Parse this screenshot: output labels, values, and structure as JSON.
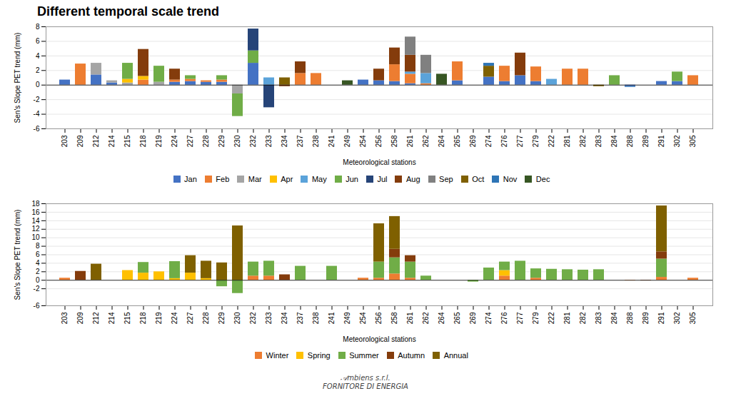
{
  "chart_data": [
    {
      "type": "bar",
      "stacked": true,
      "grid": true,
      "legend": "bottom",
      "title": "Different temporal scale trend",
      "xlabel": "Meteorological stations",
      "ylabel": "Sen's Slope PET trend (mm)",
      "categories": [
        "203",
        "209",
        "212",
        "214",
        "215",
        "218",
        "219",
        "224",
        "227",
        "228",
        "229",
        "230",
        "232",
        "233",
        "234",
        "237",
        "238",
        "241",
        "249",
        "254",
        "256",
        "258",
        "261",
        "262",
        "264",
        "265",
        "269",
        "274",
        "276",
        "277",
        "279",
        "222",
        "281",
        "282",
        "283",
        "284",
        "288",
        "289",
        "291",
        "302",
        "305"
      ],
      "ylim": [
        -6,
        8
      ],
      "yticks": [
        -6,
        -4,
        -2,
        0,
        2,
        4,
        6,
        8
      ],
      "series": [
        {
          "name": "Jan",
          "color": "#4472C4",
          "values": [
            0.7,
            0.0,
            1.4,
            0.3,
            0.0,
            0.0,
            0.0,
            0.4,
            0.5,
            0.4,
            0.4,
            0.0,
            3.0,
            0.0,
            0.0,
            0.0,
            0.0,
            0.0,
            0.0,
            0.7,
            0.6,
            0.5,
            0.2,
            0.0,
            0.0,
            0.6,
            0.0,
            1.1,
            0.5,
            1.3,
            0.5,
            0.0,
            0.0,
            0.0,
            0.0,
            0.0,
            -0.2,
            0.0,
            0.5,
            0.5,
            0.0
          ]
        },
        {
          "name": "Feb",
          "color": "#ED7D31",
          "values": [
            0.0,
            2.9,
            0.0,
            0.0,
            0.0,
            0.7,
            0.0,
            0.3,
            0.3,
            0.2,
            0.3,
            0.0,
            0.0,
            0.0,
            0.0,
            1.6,
            1.6,
            0.0,
            0.0,
            0.0,
            0.0,
            2.3,
            1.3,
            0.2,
            0.0,
            2.6,
            0.0,
            0.0,
            2.1,
            0.0,
            2.0,
            0.0,
            2.2,
            2.2,
            0.0,
            0.0,
            0.0,
            0.0,
            0.0,
            0.0,
            1.3
          ]
        },
        {
          "name": "Mar",
          "color": "#A5A5A5",
          "values": [
            0.0,
            0.0,
            1.6,
            0.3,
            0.3,
            0.0,
            0.4,
            0.0,
            0.0,
            0.0,
            0.0,
            -1.2,
            0.0,
            0.0,
            0.0,
            0.0,
            0.0,
            0.0,
            0.0,
            0.0,
            0.0,
            0.0,
            0.0,
            0.0,
            0.0,
            0.0,
            0.0,
            0.0,
            0.0,
            0.0,
            0.0,
            0.0,
            0.0,
            0.0,
            0.0,
            0.0,
            0.0,
            0.0,
            0.0,
            0.0,
            0.0
          ]
        },
        {
          "name": "Apr",
          "color": "#FFC000",
          "values": [
            0.0,
            0.0,
            0.0,
            0.0,
            0.5,
            0.5,
            0.0,
            0.0,
            0.0,
            0.0,
            0.0,
            0.0,
            0.0,
            0.0,
            0.0,
            0.0,
            0.0,
            0.0,
            0.0,
            0.0,
            0.0,
            0.0,
            0.0,
            0.0,
            0.0,
            0.0,
            0.0,
            0.0,
            0.0,
            0.0,
            0.0,
            0.0,
            0.0,
            0.0,
            0.0,
            0.0,
            0.0,
            0.0,
            0.0,
            0.0,
            0.0
          ]
        },
        {
          "name": "May",
          "color": "#5BA3DA",
          "values": [
            0.0,
            0.0,
            0.0,
            0.0,
            0.0,
            0.0,
            0.0,
            0.0,
            0.0,
            0.0,
            0.0,
            0.0,
            0.0,
            1.0,
            0.0,
            0.0,
            0.0,
            0.0,
            0.0,
            0.0,
            0.0,
            0.0,
            0.3,
            1.4,
            0.0,
            0.0,
            0.0,
            0.0,
            0.0,
            0.0,
            0.0,
            0.8,
            0.0,
            0.0,
            0.0,
            0.0,
            0.0,
            0.0,
            0.0,
            0.0,
            0.0
          ]
        },
        {
          "name": "Jun",
          "color": "#70AD47",
          "values": [
            0.0,
            0.0,
            0.0,
            0.0,
            2.2,
            0.0,
            2.2,
            0.0,
            0.5,
            0.0,
            0.6,
            -3.1,
            1.7,
            0.0,
            0.0,
            0.0,
            0.0,
            0.0,
            0.0,
            0.0,
            0.0,
            0.0,
            0.0,
            0.0,
            0.0,
            0.0,
            0.0,
            0.0,
            0.0,
            0.0,
            0.0,
            0.0,
            0.0,
            0.0,
            0.0,
            1.3,
            0.0,
            0.0,
            0.0,
            1.3,
            0.0
          ]
        },
        {
          "name": "Jul",
          "color": "#264478",
          "values": [
            0.0,
            0.0,
            0.0,
            0.0,
            0.0,
            0.0,
            0.0,
            0.0,
            0.0,
            0.0,
            0.0,
            0.0,
            3.0,
            -3.1,
            0.0,
            0.0,
            0.0,
            0.0,
            0.0,
            0.0,
            0.0,
            0.0,
            0.0,
            0.0,
            0.0,
            0.0,
            0.0,
            0.0,
            0.0,
            0.0,
            0.0,
            0.0,
            0.0,
            0.0,
            0.0,
            0.0,
            0.0,
            0.0,
            0.0,
            0.0,
            0.0
          ]
        },
        {
          "name": "Aug",
          "color": "#843C0C",
          "values": [
            0.0,
            0.0,
            0.0,
            0.0,
            0.0,
            3.7,
            0.0,
            1.5,
            0.0,
            0.0,
            0.0,
            0.0,
            0.0,
            0.0,
            -0.2,
            1.6,
            0.0,
            0.0,
            0.0,
            0.0,
            1.6,
            2.3,
            2.3,
            0.0,
            0.0,
            0.0,
            0.0,
            0.0,
            0.0,
            3.1,
            0.0,
            0.0,
            0.0,
            0.0,
            0.0,
            0.0,
            0.0,
            0.0,
            0.0,
            0.0,
            0.0
          ]
        },
        {
          "name": "Sep",
          "color": "#808080",
          "values": [
            0.0,
            0.0,
            0.0,
            0.0,
            0.0,
            0.0,
            0.0,
            0.0,
            0.0,
            0.0,
            0.0,
            0.0,
            0.0,
            0.0,
            0.0,
            0.0,
            0.0,
            0.0,
            0.0,
            0.0,
            0.0,
            0.0,
            2.5,
            2.5,
            0.0,
            0.0,
            0.0,
            0.0,
            0.0,
            0.0,
            0.0,
            0.0,
            0.0,
            0.0,
            0.0,
            0.0,
            0.0,
            0.0,
            0.0,
            0.0,
            0.0
          ]
        },
        {
          "name": "Oct",
          "color": "#7F6000",
          "values": [
            0.0,
            0.0,
            0.0,
            0.0,
            0.0,
            0.0,
            0.0,
            0.0,
            0.0,
            0.0,
            0.0,
            0.0,
            0.0,
            0.0,
            1.0,
            0.0,
            0.0,
            0.0,
            0.0,
            0.0,
            0.0,
            0.0,
            0.0,
            0.0,
            0.0,
            0.0,
            0.0,
            1.5,
            0.0,
            0.0,
            0.0,
            0.0,
            0.0,
            0.0,
            -0.2,
            0.0,
            0.0,
            0.0,
            0.0,
            0.0,
            0.0
          ]
        },
        {
          "name": "Nov",
          "color": "#2E75B6",
          "values": [
            0.0,
            0.0,
            0.0,
            0.0,
            0.0,
            0.0,
            0.0,
            0.0,
            0.0,
            0.0,
            0.0,
            0.0,
            0.0,
            0.0,
            0.0,
            0.0,
            0.0,
            0.0,
            0.0,
            0.0,
            0.0,
            0.0,
            0.0,
            0.0,
            0.0,
            0.0,
            0.0,
            0.4,
            0.0,
            0.0,
            0.0,
            0.0,
            0.0,
            0.0,
            0.0,
            0.0,
            -0.1,
            0.0,
            0.0,
            0.0,
            0.0
          ]
        },
        {
          "name": "Dec",
          "color": "#375623",
          "values": [
            0.0,
            0.0,
            0.0,
            0.0,
            0.0,
            0.0,
            0.0,
            0.0,
            0.0,
            0.0,
            0.0,
            0.0,
            0.0,
            0.0,
            0.0,
            0.0,
            0.0,
            0.0,
            0.6,
            0.0,
            0.0,
            0.0,
            0.0,
            0.0,
            1.5,
            0.0,
            0.0,
            0.0,
            0.0,
            0.0,
            0.0,
            0.0,
            0.0,
            0.0,
            0.0,
            0.0,
            0.0,
            0.0,
            0.0,
            0.0,
            0.0
          ]
        }
      ]
    },
    {
      "type": "bar",
      "stacked": true,
      "grid": true,
      "legend": "bottom",
      "xlabel": "Meteorological stations",
      "ylabel": "Sen's Slope PET trend (mm)",
      "categories": [
        "203",
        "209",
        "212",
        "214",
        "215",
        "218",
        "219",
        "224",
        "227",
        "228",
        "229",
        "230",
        "232",
        "233",
        "234",
        "237",
        "238",
        "241",
        "249",
        "254",
        "256",
        "258",
        "261",
        "262",
        "264",
        "265",
        "269",
        "274",
        "276",
        "277",
        "279",
        "222",
        "281",
        "282",
        "283",
        "284",
        "288",
        "289",
        "291",
        "302",
        "305"
      ],
      "ylim": [
        -6,
        18
      ],
      "yticks": [
        -6,
        -2,
        0,
        2,
        4,
        6,
        8,
        10,
        12,
        14,
        16,
        18
      ],
      "annotations": [
        "𝒜mbiens s.r.l.\nFORNITORE DI ENERGIA"
      ],
      "series": [
        {
          "name": "Winter",
          "color": "#ED7D31",
          "values": [
            0.5,
            0.0,
            0.0,
            0.0,
            0.0,
            0.0,
            0.0,
            0.0,
            0.0,
            0.0,
            0.0,
            0.0,
            1.0,
            1.0,
            0.0,
            0.0,
            0.0,
            0.0,
            0.0,
            0.5,
            0.5,
            1.5,
            0.5,
            0.0,
            0.0,
            0.0,
            0.0,
            0.0,
            1.0,
            0.0,
            0.5,
            0.0,
            0.0,
            0.0,
            0.0,
            0.0,
            -0.1,
            0.0,
            0.7,
            0.0,
            0.5
          ]
        },
        {
          "name": "Spring",
          "color": "#FFC000",
          "values": [
            0.0,
            0.0,
            0.0,
            0.0,
            2.3,
            1.7,
            2.0,
            0.4,
            1.7,
            0.4,
            0.0,
            0.0,
            0.0,
            0.0,
            0.0,
            0.0,
            0.0,
            0.0,
            0.0,
            0.0,
            0.0,
            0.0,
            0.0,
            0.0,
            0.0,
            0.0,
            0.0,
            0.0,
            1.3,
            0.0,
            0.0,
            0.0,
            0.0,
            0.0,
            0.0,
            0.0,
            0.0,
            0.0,
            0.0,
            0.0,
            0.0
          ]
        },
        {
          "name": "Summer",
          "color": "#70AD47",
          "values": [
            0.0,
            0.0,
            0.0,
            0.0,
            0.0,
            2.5,
            0.0,
            4.0,
            0.0,
            0.0,
            -1.5,
            -3.1,
            3.3,
            3.5,
            0.0,
            3.3,
            0.0,
            3.3,
            0.0,
            0.0,
            3.8,
            3.8,
            3.8,
            1.0,
            0.0,
            0.0,
            -0.4,
            2.9,
            2.0,
            4.5,
            2.2,
            2.6,
            2.5,
            2.4,
            2.5,
            0.0,
            0.0,
            0.0,
            4.3,
            0.0,
            0.0
          ]
        },
        {
          "name": "Autumn",
          "color": "#843C0C",
          "values": [
            0.0,
            2.1,
            0.0,
            0.0,
            0.0,
            0.0,
            0.0,
            0.0,
            0.0,
            0.0,
            0.0,
            0.0,
            0.0,
            0.0,
            1.3,
            0.0,
            0.0,
            0.0,
            0.0,
            0.0,
            0.0,
            2.0,
            1.5,
            0.0,
            0.0,
            0.0,
            0.0,
            0.0,
            0.0,
            0.0,
            0.0,
            0.0,
            0.0,
            0.0,
            0.0,
            0.0,
            0.0,
            -0.1,
            1.7,
            0.0,
            0.0
          ]
        },
        {
          "name": "Annual",
          "color": "#7F6000",
          "values": [
            0.0,
            0.0,
            3.8,
            0.0,
            0.0,
            0.0,
            0.0,
            0.0,
            4.1,
            4.1,
            4.1,
            12.8,
            0.0,
            0.0,
            0.0,
            0.0,
            0.0,
            0.0,
            0.0,
            0.0,
            9.0,
            7.7,
            0.0,
            0.0,
            0.0,
            0.0,
            0.0,
            0.0,
            0.0,
            0.0,
            0.0,
            0.0,
            0.0,
            0.0,
            0.0,
            0.0,
            0.0,
            0.0,
            10.8,
            0.0,
            0.0
          ]
        }
      ]
    }
  ]
}
